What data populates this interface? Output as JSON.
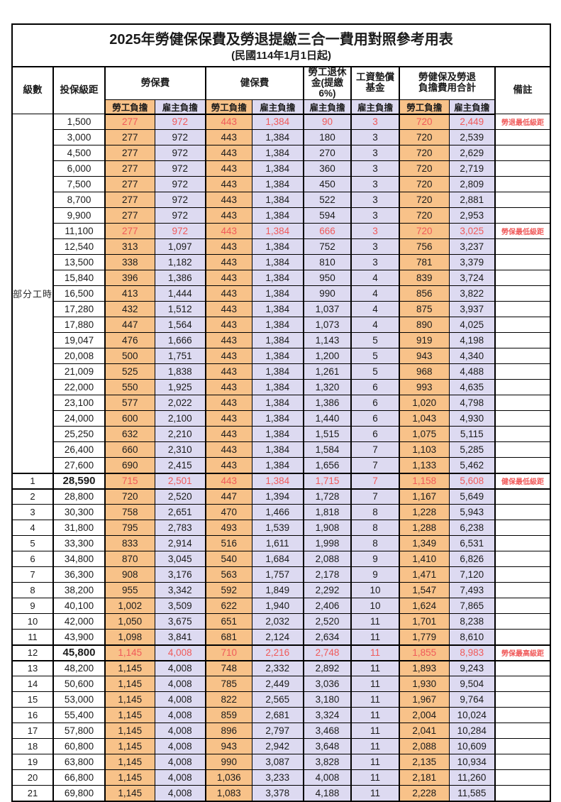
{
  "title": "2025年勞健保保費及勞退提繳三合一費用對照參考用表",
  "subtitle": "(民國114年1月1日起)",
  "colors": {
    "employee_bg": "#F8C289",
    "employer_bg": "#DDDAF1",
    "highlight_red": "#F05A5A"
  },
  "header": {
    "level": "級數",
    "bracket": "投保級距",
    "labor_fee": "勞保費",
    "health_fee": "健保費",
    "pension": "勞工退休\n金(提繳6%)",
    "wage_fund": "工資墊償\n基金",
    "total": "勞健保及勞退\n負擔費用合計",
    "note": "備註",
    "employee": "勞工負擔",
    "employer": "雇主負擔"
  },
  "part_time": {
    "label": "部分工時",
    "rows": 23
  },
  "rows": [
    {
      "level": "",
      "bracket": "1,500",
      "values": [
        "277",
        "972",
        "443",
        "1,384",
        "90",
        "3",
        "720",
        "2,449"
      ],
      "note": "勞退最低級距",
      "red": true,
      "key": false
    },
    {
      "level": "",
      "bracket": "3,000",
      "values": [
        "277",
        "972",
        "443",
        "1,384",
        "180",
        "3",
        "720",
        "2,539"
      ],
      "note": "",
      "red": false,
      "key": false
    },
    {
      "level": "",
      "bracket": "4,500",
      "values": [
        "277",
        "972",
        "443",
        "1,384",
        "270",
        "3",
        "720",
        "2,629"
      ],
      "note": "",
      "red": false,
      "key": false
    },
    {
      "level": "",
      "bracket": "6,000",
      "values": [
        "277",
        "972",
        "443",
        "1,384",
        "360",
        "3",
        "720",
        "2,719"
      ],
      "note": "",
      "red": false,
      "key": false
    },
    {
      "level": "",
      "bracket": "7,500",
      "values": [
        "277",
        "972",
        "443",
        "1,384",
        "450",
        "3",
        "720",
        "2,809"
      ],
      "note": "",
      "red": false,
      "key": false
    },
    {
      "level": "",
      "bracket": "8,700",
      "values": [
        "277",
        "972",
        "443",
        "1,384",
        "522",
        "3",
        "720",
        "2,881"
      ],
      "note": "",
      "red": false,
      "key": false
    },
    {
      "level": "",
      "bracket": "9,900",
      "values": [
        "277",
        "972",
        "443",
        "1,384",
        "594",
        "3",
        "720",
        "2,953"
      ],
      "note": "",
      "red": false,
      "key": false
    },
    {
      "level": "",
      "bracket": "11,100",
      "values": [
        "277",
        "972",
        "443",
        "1,384",
        "666",
        "3",
        "720",
        "3,025"
      ],
      "note": "勞保最低級距",
      "red": true,
      "key": false
    },
    {
      "level": "",
      "bracket": "12,540",
      "values": [
        "313",
        "1,097",
        "443",
        "1,384",
        "752",
        "3",
        "756",
        "3,237"
      ],
      "note": "",
      "red": false,
      "key": false
    },
    {
      "level": "",
      "bracket": "13,500",
      "values": [
        "338",
        "1,182",
        "443",
        "1,384",
        "810",
        "3",
        "781",
        "3,379"
      ],
      "note": "",
      "red": false,
      "key": false
    },
    {
      "level": "",
      "bracket": "15,840",
      "values": [
        "396",
        "1,386",
        "443",
        "1,384",
        "950",
        "4",
        "839",
        "3,724"
      ],
      "note": "",
      "red": false,
      "key": false
    },
    {
      "level": "",
      "bracket": "16,500",
      "values": [
        "413",
        "1,444",
        "443",
        "1,384",
        "990",
        "4",
        "856",
        "3,822"
      ],
      "note": "",
      "red": false,
      "key": false
    },
    {
      "level": "",
      "bracket": "17,280",
      "values": [
        "432",
        "1,512",
        "443",
        "1,384",
        "1,037",
        "4",
        "875",
        "3,937"
      ],
      "note": "",
      "red": false,
      "key": false
    },
    {
      "level": "",
      "bracket": "17,880",
      "values": [
        "447",
        "1,564",
        "443",
        "1,384",
        "1,073",
        "4",
        "890",
        "4,025"
      ],
      "note": "",
      "red": false,
      "key": false
    },
    {
      "level": "",
      "bracket": "19,047",
      "values": [
        "476",
        "1,666",
        "443",
        "1,384",
        "1,143",
        "5",
        "919",
        "4,198"
      ],
      "note": "",
      "red": false,
      "key": false
    },
    {
      "level": "",
      "bracket": "20,008",
      "values": [
        "500",
        "1,751",
        "443",
        "1,384",
        "1,200",
        "5",
        "943",
        "4,340"
      ],
      "note": "",
      "red": false,
      "key": false
    },
    {
      "level": "",
      "bracket": "21,009",
      "values": [
        "525",
        "1,838",
        "443",
        "1,384",
        "1,261",
        "5",
        "968",
        "4,488"
      ],
      "note": "",
      "red": false,
      "key": false
    },
    {
      "level": "",
      "bracket": "22,000",
      "values": [
        "550",
        "1,925",
        "443",
        "1,384",
        "1,320",
        "6",
        "993",
        "4,635"
      ],
      "note": "",
      "red": false,
      "key": false
    },
    {
      "level": "",
      "bracket": "23,100",
      "values": [
        "577",
        "2,022",
        "443",
        "1,384",
        "1,386",
        "6",
        "1,020",
        "4,798"
      ],
      "note": "",
      "red": false,
      "key": false
    },
    {
      "level": "",
      "bracket": "24,000",
      "values": [
        "600",
        "2,100",
        "443",
        "1,384",
        "1,440",
        "6",
        "1,043",
        "4,930"
      ],
      "note": "",
      "red": false,
      "key": false
    },
    {
      "level": "",
      "bracket": "25,250",
      "values": [
        "632",
        "2,210",
        "443",
        "1,384",
        "1,515",
        "6",
        "1,075",
        "5,115"
      ],
      "note": "",
      "red": false,
      "key": false
    },
    {
      "level": "",
      "bracket": "26,400",
      "values": [
        "660",
        "2,310",
        "443",
        "1,384",
        "1,584",
        "7",
        "1,103",
        "5,285"
      ],
      "note": "",
      "red": false,
      "key": false
    },
    {
      "level": "",
      "bracket": "27,600",
      "values": [
        "690",
        "2,415",
        "443",
        "1,384",
        "1,656",
        "7",
        "1,133",
        "5,462"
      ],
      "note": "",
      "red": false,
      "key": false
    },
    {
      "level": "1",
      "bracket": "28,590",
      "values": [
        "715",
        "2,501",
        "443",
        "1,384",
        "1,715",
        "7",
        "1,158",
        "5,608"
      ],
      "note": "健保最低級距",
      "red": true,
      "key": true
    },
    {
      "level": "2",
      "bracket": "28,800",
      "values": [
        "720",
        "2,520",
        "447",
        "1,394",
        "1,728",
        "7",
        "1,167",
        "5,649"
      ],
      "note": "",
      "red": false,
      "key": false
    },
    {
      "level": "3",
      "bracket": "30,300",
      "values": [
        "758",
        "2,651",
        "470",
        "1,466",
        "1,818",
        "8",
        "1,228",
        "5,943"
      ],
      "note": "",
      "red": false,
      "key": false
    },
    {
      "level": "4",
      "bracket": "31,800",
      "values": [
        "795",
        "2,783",
        "493",
        "1,539",
        "1,908",
        "8",
        "1,288",
        "6,238"
      ],
      "note": "",
      "red": false,
      "key": false
    },
    {
      "level": "5",
      "bracket": "33,300",
      "values": [
        "833",
        "2,914",
        "516",
        "1,611",
        "1,998",
        "8",
        "1,349",
        "6,531"
      ],
      "note": "",
      "red": false,
      "key": false
    },
    {
      "level": "6",
      "bracket": "34,800",
      "values": [
        "870",
        "3,045",
        "540",
        "1,684",
        "2,088",
        "9",
        "1,410",
        "6,826"
      ],
      "note": "",
      "red": false,
      "key": false
    },
    {
      "level": "7",
      "bracket": "36,300",
      "values": [
        "908",
        "3,176",
        "563",
        "1,757",
        "2,178",
        "9",
        "1,471",
        "7,120"
      ],
      "note": "",
      "red": false,
      "key": false
    },
    {
      "level": "8",
      "bracket": "38,200",
      "values": [
        "955",
        "3,342",
        "592",
        "1,849",
        "2,292",
        "10",
        "1,547",
        "7,493"
      ],
      "note": "",
      "red": false,
      "key": false
    },
    {
      "level": "9",
      "bracket": "40,100",
      "values": [
        "1,002",
        "3,509",
        "622",
        "1,940",
        "2,406",
        "10",
        "1,624",
        "7,865"
      ],
      "note": "",
      "red": false,
      "key": false
    },
    {
      "level": "10",
      "bracket": "42,000",
      "values": [
        "1,050",
        "3,675",
        "651",
        "2,032",
        "2,520",
        "11",
        "1,701",
        "8,238"
      ],
      "note": "",
      "red": false,
      "key": false
    },
    {
      "level": "11",
      "bracket": "43,900",
      "values": [
        "1,098",
        "3,841",
        "681",
        "2,124",
        "2,634",
        "11",
        "1,779",
        "8,610"
      ],
      "note": "",
      "red": false,
      "key": false
    },
    {
      "level": "12",
      "bracket": "45,800",
      "values": [
        "1,145",
        "4,008",
        "710",
        "2,216",
        "2,748",
        "11",
        "1,855",
        "8,983"
      ],
      "note": "勞保最高級距",
      "red": true,
      "key": true
    },
    {
      "level": "13",
      "bracket": "48,200",
      "values": [
        "1,145",
        "4,008",
        "748",
        "2,332",
        "2,892",
        "11",
        "1,893",
        "9,243"
      ],
      "note": "",
      "red": false,
      "key": false
    },
    {
      "level": "14",
      "bracket": "50,600",
      "values": [
        "1,145",
        "4,008",
        "785",
        "2,449",
        "3,036",
        "11",
        "1,930",
        "9,504"
      ],
      "note": "",
      "red": false,
      "key": false
    },
    {
      "level": "15",
      "bracket": "53,000",
      "values": [
        "1,145",
        "4,008",
        "822",
        "2,565",
        "3,180",
        "11",
        "1,967",
        "9,764"
      ],
      "note": "",
      "red": false,
      "key": false
    },
    {
      "level": "16",
      "bracket": "55,400",
      "values": [
        "1,145",
        "4,008",
        "859",
        "2,681",
        "3,324",
        "11",
        "2,004",
        "10,024"
      ],
      "note": "",
      "red": false,
      "key": false
    },
    {
      "level": "17",
      "bracket": "57,800",
      "values": [
        "1,145",
        "4,008",
        "896",
        "2,797",
        "3,468",
        "11",
        "2,041",
        "10,284"
      ],
      "note": "",
      "red": false,
      "key": false
    },
    {
      "level": "18",
      "bracket": "60,800",
      "values": [
        "1,145",
        "4,008",
        "943",
        "2,942",
        "3,648",
        "11",
        "2,088",
        "10,609"
      ],
      "note": "",
      "red": false,
      "key": false
    },
    {
      "level": "19",
      "bracket": "63,800",
      "values": [
        "1,145",
        "4,008",
        "990",
        "3,087",
        "3,828",
        "11",
        "2,135",
        "10,934"
      ],
      "note": "",
      "red": false,
      "key": false
    },
    {
      "level": "20",
      "bracket": "66,800",
      "values": [
        "1,145",
        "4,008",
        "1,036",
        "3,233",
        "4,008",
        "11",
        "2,181",
        "11,260"
      ],
      "note": "",
      "red": false,
      "key": false
    },
    {
      "level": "21",
      "bracket": "69,800",
      "values": [
        "1,145",
        "4,008",
        "1,083",
        "3,378",
        "4,188",
        "11",
        "2,228",
        "11,585"
      ],
      "note": "",
      "red": false,
      "key": false
    }
  ]
}
